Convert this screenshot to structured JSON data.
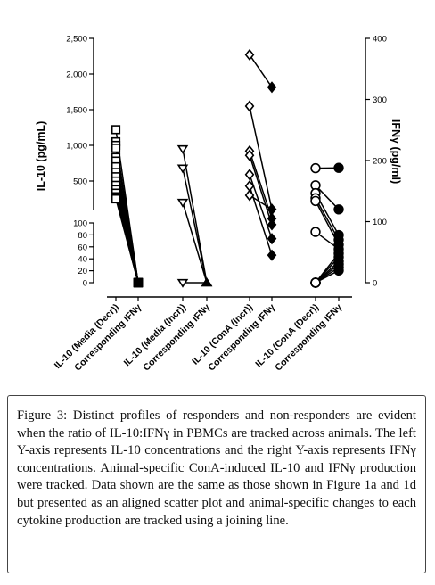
{
  "chart_data": {
    "type": "scatter",
    "left_axis": {
      "title": "IL-10 (pg/mL)",
      "upper_ticks": [
        "2,500",
        "2,000",
        "1,500",
        "1,000",
        "500"
      ],
      "upper_tick_values": [
        2500,
        2000,
        1500,
        1000,
        500
      ],
      "lower_ticks": [
        "100",
        "80",
        "60",
        "40",
        "20",
        "0"
      ],
      "lower_tick_values": [
        100,
        80,
        60,
        40,
        20,
        0
      ],
      "upper_range": [
        100,
        2500
      ],
      "lower_range": [
        0,
        100
      ]
    },
    "right_axis": {
      "title": "IFNγ (pg/ml)",
      "ticks": [
        "400",
        "300",
        "200",
        "100",
        "0"
      ],
      "tick_values": [
        400,
        300,
        200,
        100,
        0
      ],
      "range": [
        0,
        400
      ]
    },
    "categories": [
      "IL-10 (Media (Decr))",
      "Corresponding IFNγ",
      "IL-10 (Media (Incr))",
      "Corresponding IFNγ",
      "IL-10 (ConA (Incr))",
      "Corresponding IFNγ",
      "IL-10 (ConA (Decr))",
      "Corresponding IFNγ"
    ],
    "groups": [
      {
        "il10_marker": "open-square",
        "ifng_marker": "filled-square",
        "il10": [
          1220,
          1050,
          1000,
          960,
          830,
          780,
          700,
          620,
          560,
          500,
          440,
          380,
          330,
          280,
          250
        ],
        "ifng": [
          0,
          0,
          0,
          0,
          0,
          0,
          0,
          0,
          0,
          0,
          0,
          0,
          0,
          0,
          0
        ]
      },
      {
        "il10_marker": "open-triangle-down",
        "ifng_marker": "filled-triangle-up",
        "il10": [
          950,
          680,
          200,
          0
        ],
        "ifng": [
          0,
          0,
          0,
          0
        ]
      },
      {
        "il10_marker": "open-diamond",
        "ifng_marker": "filled-diamond",
        "il10": [
          2270,
          1550,
          920,
          860,
          590,
          430,
          300
        ],
        "ifng": [
          320,
          120,
          105,
          95,
          72,
          45,
          120
        ]
      },
      {
        "il10_marker": "open-circle",
        "ifng_marker": "filled-circle",
        "il10": [
          680,
          440,
          330,
          260,
          220,
          85,
          0,
          0,
          0,
          0,
          0,
          0
        ],
        "ifng": [
          188,
          120,
          78,
          70,
          62,
          55,
          48,
          42,
          35,
          30,
          25,
          20
        ]
      }
    ]
  },
  "caption": {
    "label": "Figure 3:",
    "text": "Distinct profiles of responders and non-responders are evident when the ratio of IL-10:IFNγ in PBMCs are tracked across animals. The left Y-axis represents IL-10 concentrations and the right Y-axis represents IFNγ concentrations. Animal-specific ConA-induced IL-10 and IFNγ production were tracked. Data shown are the same as those shown in Figure 1a and 1d but presented as an aligned scatter plot and animal-specific changes to each cytokine production are tracked using a joining line."
  }
}
